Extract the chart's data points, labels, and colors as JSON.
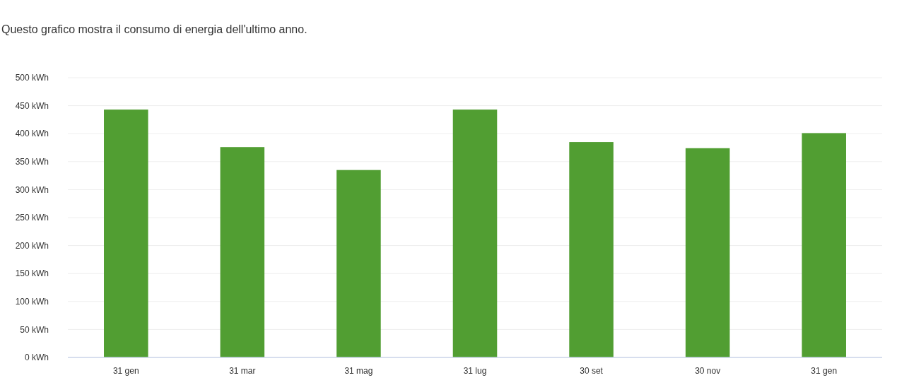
{
  "chart_data": {
    "type": "bar",
    "title": "Questo grafico mostra il consumo di energia dell'ultimo anno.",
    "categories": [
      "31 gen",
      "31 mar",
      "31 mag",
      "31 lug",
      "30 set",
      "30 nov",
      "31 gen"
    ],
    "values": [
      443,
      376,
      335,
      443,
      385,
      374,
      401
    ],
    "color": "#519e32",
    "ylim": [
      0,
      500
    ],
    "yticks": [
      {
        "value": 0,
        "label": "0 kWh"
      },
      {
        "value": 50,
        "label": "50 kWh"
      },
      {
        "value": 100,
        "label": "100 kWh"
      },
      {
        "value": 150,
        "label": "150 kWh"
      },
      {
        "value": 200,
        "label": "200 kWh"
      },
      {
        "value": 250,
        "label": "250 kWh"
      },
      {
        "value": 300,
        "label": "300 kWh"
      },
      {
        "value": 350,
        "label": "350 kWh"
      },
      {
        "value": 400,
        "label": "400 kWh"
      },
      {
        "value": 450,
        "label": "450 kWh"
      },
      {
        "value": 500,
        "label": "500 kWh"
      }
    ],
    "grid": "y"
  }
}
